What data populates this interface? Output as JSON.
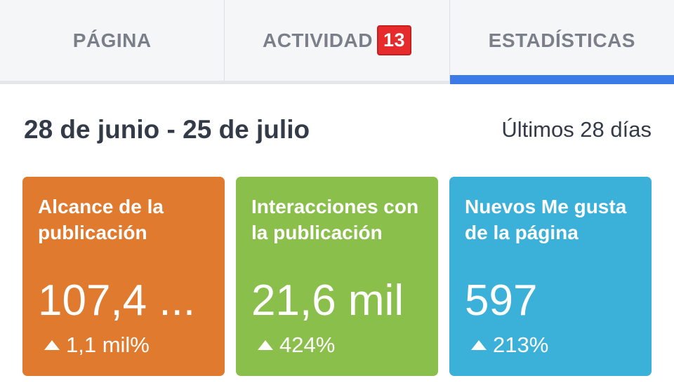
{
  "tabs": [
    {
      "label": "PÁGINA",
      "active": false
    },
    {
      "label": "ACTIVIDAD",
      "active": false,
      "badge": "13"
    },
    {
      "label": "ESTADÍSTICAS",
      "active": true
    }
  ],
  "summary": {
    "date_range": "28 de junio - 25 de julio",
    "period": "Últimos 28 días"
  },
  "cards": [
    {
      "title": "Alcance de la publicación",
      "value": "107,4 ...",
      "change": "1,1 mil%",
      "color": "#e07a2e",
      "trend_icon": "up-arrow-icon"
    },
    {
      "title": "Interacciones con la publicación",
      "value": "21,6 mil",
      "change": "424%",
      "color": "#8bbf4b",
      "trend_icon": "up-arrow-icon"
    },
    {
      "title": "Nuevos Me gusta de la página",
      "value": "597",
      "change": "213%",
      "color": "#3bb0d9",
      "trend_icon": "up-arrow-icon"
    }
  ],
  "colors": {
    "tab_active_underline": "#3b7be8",
    "badge": "#e52b2b",
    "tab_text": "#7a7f89"
  }
}
